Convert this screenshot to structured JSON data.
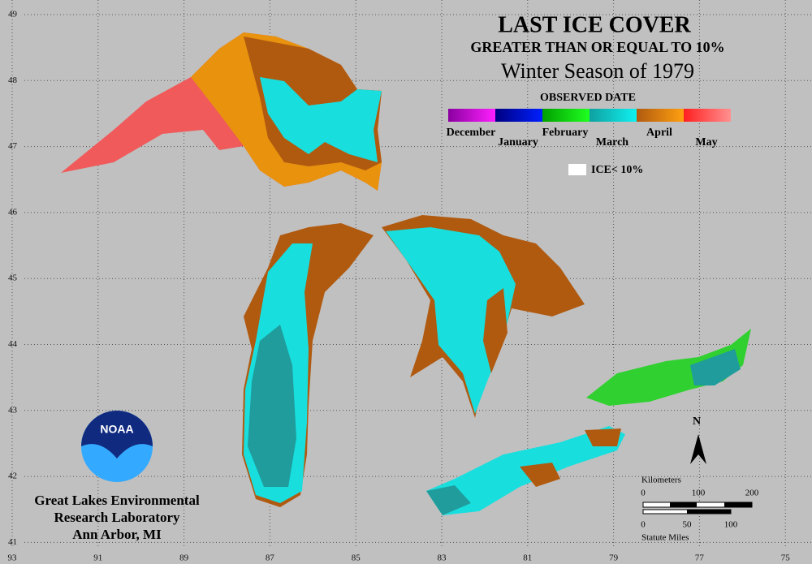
{
  "title": "LAST ICE COVER",
  "subtitle": "GREATER THAN OR EQUAL TO 10%",
  "season": "Winter Season of 1979",
  "legend": {
    "title": "OBSERVED DATE",
    "months": [
      "December",
      "January",
      "February",
      "March",
      "April",
      "May"
    ],
    "no_ice": "ICE< 10%"
  },
  "grid": {
    "latitudes": [
      49,
      48,
      47,
      46,
      45,
      44,
      43,
      42,
      41
    ],
    "longitudes": [
      93,
      91,
      89,
      87,
      85,
      83,
      81,
      79,
      77,
      75
    ]
  },
  "north": "N",
  "scale": {
    "km_label": "Kilometers",
    "km_ticks": [
      "0",
      "100",
      "200"
    ],
    "mi_label": "Statute Miles",
    "mi_ticks": [
      "0",
      "50",
      "100"
    ]
  },
  "logo": "NOAA",
  "credit": [
    "Great Lakes Environmental",
    "Research Laboratory",
    "Ann Arbor, MI"
  ]
}
